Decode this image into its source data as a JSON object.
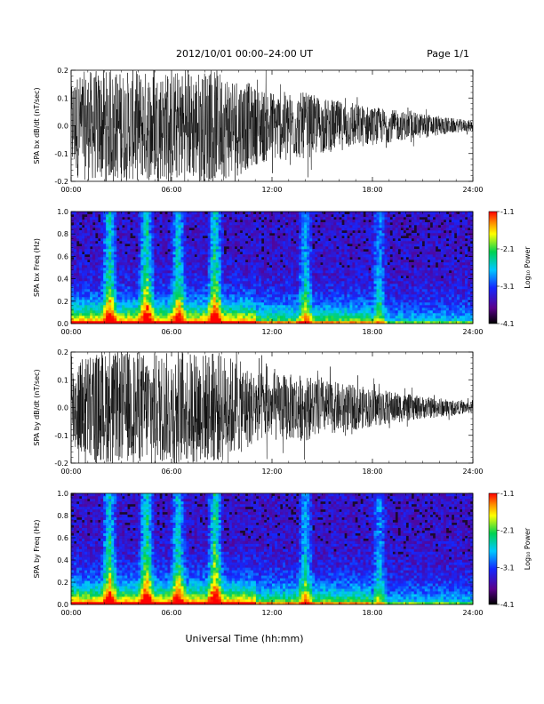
{
  "header": {
    "title": "2012/10/01   00:00–24:00 UT",
    "page": "Page 1/1"
  },
  "xlabel": "Universal Time (hh:mm)",
  "chart_data": [
    {
      "type": "line",
      "panel": "SPA bx waveform",
      "ylabel": "SPA bx dB/dt (nT/sec)",
      "xlim": [
        0,
        24
      ],
      "xticks": [
        "00:00",
        "06:00",
        "12:00",
        "18:00",
        "24:00"
      ],
      "ylim": [
        -0.2,
        0.2
      ],
      "yticks": [
        "-0.2",
        "-0.1",
        "0.0",
        "0.1",
        "0.2"
      ],
      "series": [
        {
          "x": [
            0,
            1,
            2,
            3,
            4,
            5,
            6,
            7,
            8,
            9,
            10,
            11,
            12,
            13,
            14,
            15,
            16,
            17,
            18,
            19,
            20,
            21,
            22,
            23,
            24
          ],
          "amplitude": [
            0.18,
            0.2,
            0.2,
            0.2,
            0.2,
            0.2,
            0.2,
            0.2,
            0.2,
            0.2,
            0.18,
            0.14,
            0.13,
            0.12,
            0.12,
            0.1,
            0.09,
            0.08,
            0.07,
            0.06,
            0.05,
            0.045,
            0.035,
            0.025,
            0.02
          ]
        }
      ]
    },
    {
      "type": "heatmap",
      "panel": "SPA bx spectrogram",
      "ylabel": "SPA bx Freq (Hz)",
      "xlim": [
        0,
        24
      ],
      "xticks": [
        "00:00",
        "06:00",
        "12:00",
        "18:00",
        "24:00"
      ],
      "ylim": [
        0,
        1.0
      ],
      "yticks": [
        "0.0",
        "0.2",
        "0.4",
        "0.6",
        "0.8",
        "1.0"
      ],
      "colorbar": {
        "label": "Log₁₀ Power",
        "range": [
          -4.1,
          -1.1
        ],
        "ticks": [
          "-1.1",
          "-2.1",
          "-3.1",
          "-4.1"
        ]
      },
      "bursts": [
        {
          "t": 2.3,
          "level": 0.7
        },
        {
          "t": 4.5,
          "level": 0.8
        },
        {
          "t": 6.4,
          "level": 0.65
        },
        {
          "t": 8.6,
          "level": 0.75
        },
        {
          "t": 14.0,
          "level": 0.5
        },
        {
          "t": 18.4,
          "level": 0.45
        }
      ]
    },
    {
      "type": "line",
      "panel": "SPA by waveform",
      "ylabel": "SPA by dB/dt (nT/sec)",
      "xlim": [
        0,
        24
      ],
      "xticks": [
        "00:00",
        "06:00",
        "12:00",
        "18:00",
        "24:00"
      ],
      "ylim": [
        -0.2,
        0.2
      ],
      "yticks": [
        "-0.2",
        "-0.1",
        "0.0",
        "0.1",
        "0.2"
      ],
      "series": [
        {
          "x": [
            0,
            1,
            2,
            3,
            4,
            5,
            6,
            7,
            8,
            9,
            10,
            11,
            12,
            13,
            14,
            15,
            16,
            17,
            18,
            19,
            20,
            21,
            22,
            23,
            24
          ],
          "amplitude": [
            0.16,
            0.2,
            0.2,
            0.2,
            0.2,
            0.2,
            0.2,
            0.2,
            0.2,
            0.2,
            0.17,
            0.13,
            0.12,
            0.12,
            0.12,
            0.1,
            0.09,
            0.08,
            0.07,
            0.06,
            0.05,
            0.04,
            0.035,
            0.025,
            0.02
          ]
        }
      ]
    },
    {
      "type": "heatmap",
      "panel": "SPA by spectrogram",
      "ylabel": "SPA by Freq (Hz)",
      "xlim": [
        0,
        24
      ],
      "xticks": [
        "00:00",
        "06:00",
        "12:00",
        "18:00",
        "24:00"
      ],
      "ylim": [
        0,
        1.0
      ],
      "yticks": [
        "0.0",
        "0.2",
        "0.4",
        "0.6",
        "0.8",
        "1.0"
      ],
      "colorbar": {
        "label": "Log₁₀ Power",
        "range": [
          -4.1,
          -1.1
        ],
        "ticks": [
          "-1.1",
          "-2.1",
          "-3.1",
          "-4.1"
        ]
      },
      "bursts": [
        {
          "t": 2.3,
          "level": 0.7
        },
        {
          "t": 4.5,
          "level": 0.8
        },
        {
          "t": 6.4,
          "level": 0.65
        },
        {
          "t": 8.6,
          "level": 0.8
        },
        {
          "t": 14.0,
          "level": 0.5
        },
        {
          "t": 18.4,
          "level": 0.45
        }
      ]
    }
  ],
  "colors": {
    "trace": "#000000",
    "cmap": [
      "#000000",
      "#5a008c",
      "#1428ff",
      "#00c8ff",
      "#00d250",
      "#ffff00",
      "#ff8c00",
      "#ff0000"
    ]
  }
}
